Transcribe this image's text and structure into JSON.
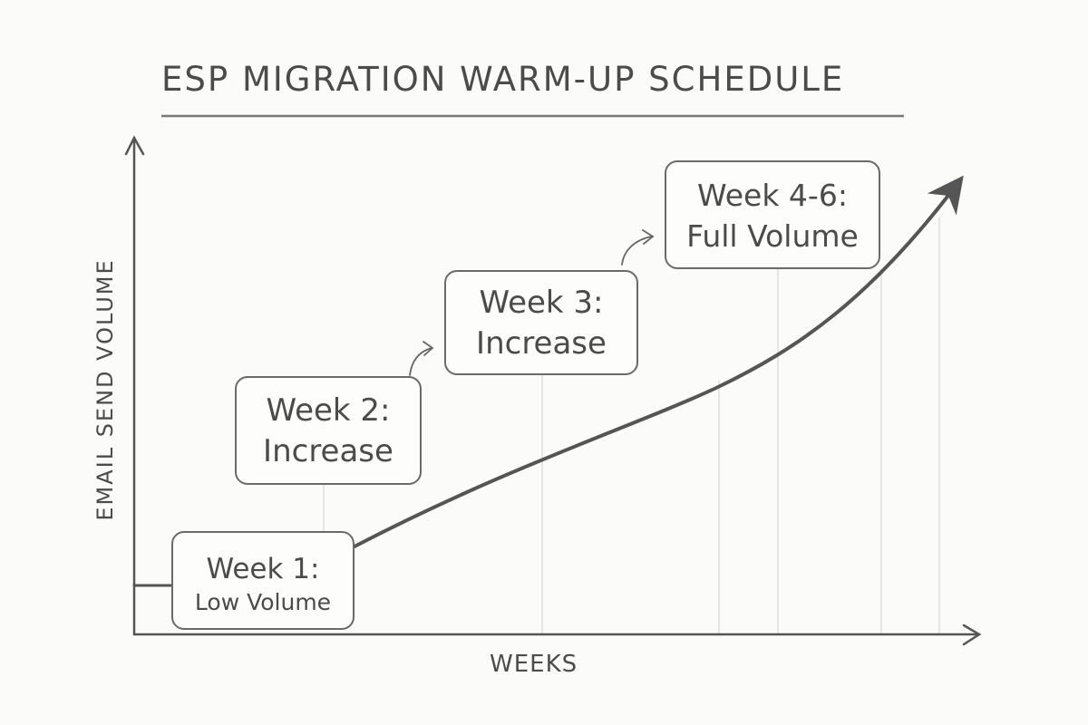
{
  "title": "ESP MIGRATION WARM-UP SCHEDULE",
  "axes": {
    "y_label": "EMAIL SEND VOLUME",
    "x_label": "WEEKS"
  },
  "stages": [
    {
      "line1": "Week 1:",
      "line2": "Low Volume"
    },
    {
      "line1": "Week 2:",
      "line2": "Increase"
    },
    {
      "line1": "Week 3:",
      "line2": "Increase"
    },
    {
      "line1": "Week 4-6:",
      "line2": "Full Volume"
    }
  ],
  "colors": {
    "ink": "#4b4b4b",
    "grid": "#dcdcdc",
    "background": "#fbfbf9"
  }
}
